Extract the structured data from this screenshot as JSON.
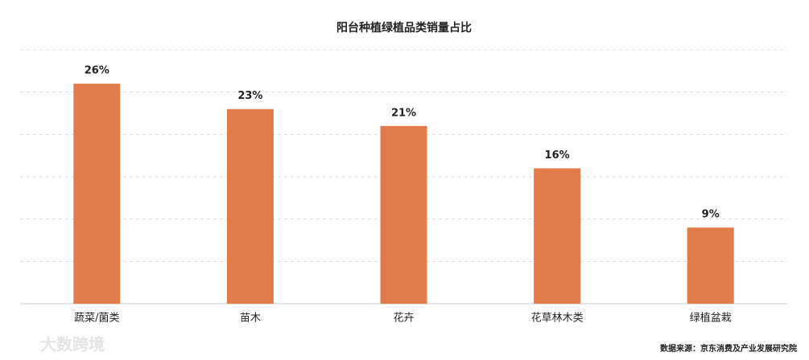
{
  "chart_data": {
    "type": "bar",
    "title": "阳台种植绿植品类销量占比",
    "categories": [
      "蔬菜/菌类",
      "苗木",
      "花卉",
      "花草林木类",
      "绿植盆栽"
    ],
    "values": [
      26,
      23,
      21,
      16,
      9
    ],
    "value_labels": [
      "26%",
      "23%",
      "21%",
      "16%",
      "9%"
    ],
    "color": "#e27d4b",
    "ylim": [
      0,
      30
    ],
    "yticks": [
      0,
      5,
      10,
      15,
      20,
      25,
      30
    ],
    "grid": true,
    "source": "数据来源：京东消费及产业发展研究院",
    "watermark": "大数跨境"
  }
}
